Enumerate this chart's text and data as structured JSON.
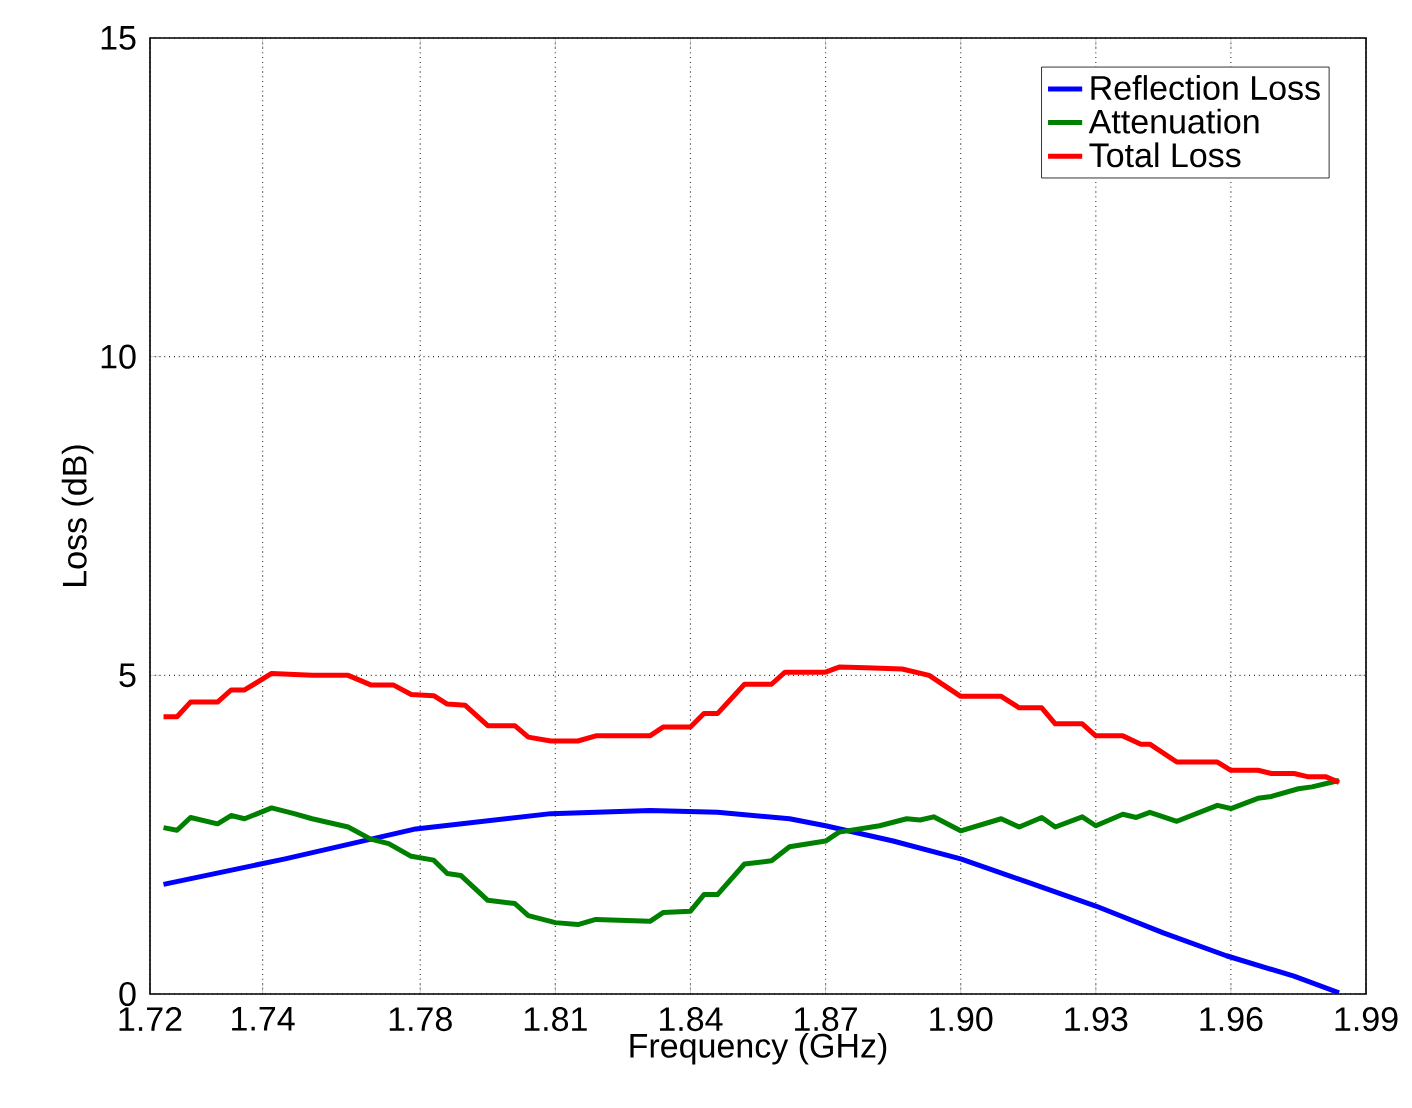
{
  "chart_data": {
    "type": "line",
    "xlabel": "Frequency (GHz)",
    "ylabel": "Loss (dB)",
    "xlim": [
      1.72,
      1.99
    ],
    "ylim": [
      0,
      15
    ],
    "xticks": [
      1.72,
      {
        "value": 1.745,
        "label": "1.74"
      },
      1.78,
      1.81,
      1.84,
      1.87,
      {
        "value": 1.9,
        "label": "1.90"
      },
      1.93,
      1.96,
      1.99
    ],
    "yticks": [
      0,
      5,
      10,
      15
    ],
    "grid": true,
    "legend": "top right",
    "marker": "none",
    "line_style": "solid",
    "series": [
      {
        "name": "Reflection Loss",
        "color": "#0000ff",
        "x": [
          1.723,
          1.75,
          1.779,
          1.809,
          1.831,
          1.846,
          1.862,
          1.87,
          1.885,
          1.9,
          1.915,
          1.93,
          1.945,
          1.959,
          1.974,
          1.984
        ],
        "values": [
          1.72,
          2.12,
          2.59,
          2.83,
          2.88,
          2.85,
          2.75,
          2.64,
          2.4,
          2.12,
          1.75,
          1.38,
          0.96,
          0.6,
          0.28,
          0.02
        ]
      },
      {
        "name": "Attenuation",
        "color": "#008000",
        "x": [
          1.723,
          1.726,
          1.729,
          1.735,
          1.738,
          1.741,
          1.747,
          1.752,
          1.756,
          1.764,
          1.769,
          1.773,
          1.778,
          1.783,
          1.786,
          1.789,
          1.795,
          1.801,
          1.804,
          1.81,
          1.815,
          1.819,
          1.831,
          1.834,
          1.84,
          1.843,
          1.846,
          1.852,
          1.858,
          1.862,
          1.87,
          1.873,
          1.882,
          1.888,
          1.891,
          1.894,
          1.9,
          1.909,
          1.913,
          1.918,
          1.921,
          1.927,
          1.93,
          1.936,
          1.939,
          1.942,
          1.948,
          1.957,
          1.96,
          1.966,
          1.969,
          1.975,
          1.978,
          1.984
        ],
        "values": [
          2.61,
          2.57,
          2.77,
          2.67,
          2.8,
          2.75,
          2.92,
          2.83,
          2.75,
          2.62,
          2.43,
          2.36,
          2.16,
          2.1,
          1.89,
          1.86,
          1.47,
          1.42,
          1.23,
          1.12,
          1.09,
          1.17,
          1.14,
          1.28,
          1.3,
          1.56,
          1.56,
          2.04,
          2.09,
          2.31,
          2.4,
          2.54,
          2.64,
          2.75,
          2.73,
          2.78,
          2.56,
          2.75,
          2.62,
          2.77,
          2.62,
          2.78,
          2.64,
          2.82,
          2.77,
          2.85,
          2.71,
          2.96,
          2.91,
          3.07,
          3.1,
          3.22,
          3.25,
          3.35
        ]
      },
      {
        "name": "Total Loss",
        "color": "#ff0000",
        "x": [
          1.723,
          1.726,
          1.729,
          1.735,
          1.738,
          1.741,
          1.747,
          1.756,
          1.764,
          1.769,
          1.774,
          1.778,
          1.783,
          1.786,
          1.79,
          1.795,
          1.801,
          1.804,
          1.809,
          1.815,
          1.819,
          1.831,
          1.834,
          1.84,
          1.843,
          1.846,
          1.852,
          1.858,
          1.861,
          1.87,
          1.873,
          1.879,
          1.887,
          1.893,
          1.9,
          1.909,
          1.913,
          1.918,
          1.921,
          1.927,
          1.93,
          1.936,
          1.94,
          1.942,
          1.948,
          1.957,
          1.96,
          1.966,
          1.969,
          1.974,
          1.977,
          1.981,
          1.984
        ],
        "values": [
          4.35,
          4.35,
          4.58,
          4.58,
          4.77,
          4.77,
          5.03,
          5.0,
          5.0,
          4.85,
          4.85,
          4.7,
          4.68,
          4.55,
          4.53,
          4.21,
          4.21,
          4.03,
          3.97,
          3.97,
          4.05,
          4.05,
          4.19,
          4.19,
          4.4,
          4.4,
          4.86,
          4.86,
          5.05,
          5.05,
          5.13,
          5.12,
          5.1,
          5.0,
          4.67,
          4.67,
          4.49,
          4.49,
          4.24,
          4.24,
          4.05,
          4.05,
          3.92,
          3.92,
          3.64,
          3.64,
          3.51,
          3.51,
          3.46,
          3.46,
          3.41,
          3.41,
          3.32
        ]
      }
    ]
  }
}
